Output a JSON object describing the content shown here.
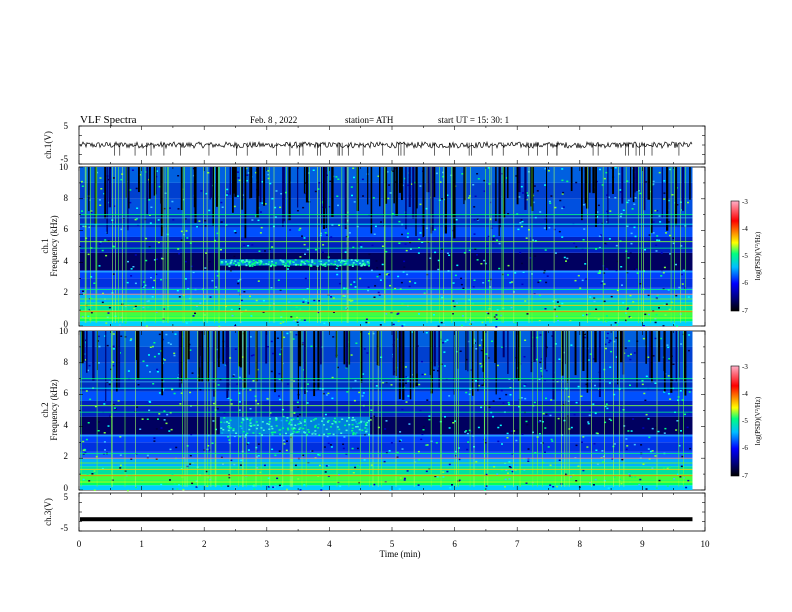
{
  "header": {
    "title": "VLF  Spectra",
    "date": "Feb. 8  , 2022",
    "station": "station= ATH",
    "start": "start  UT  =    15: 30: 1"
  },
  "chart_data": {
    "type": "heatmap",
    "xlabel": "Time  (min)",
    "xlim": [
      0,
      10
    ],
    "xticks": [
      "0",
      "1",
      "2",
      "3",
      "4",
      "5",
      "6",
      "7",
      "8",
      "9",
      "10"
    ],
    "data_end_min": 9.8,
    "panels": [
      {
        "id": "ch1-voltage",
        "type": "line",
        "ylabel": "ch.1(V)",
        "ylim": [
          -5,
          5
        ],
        "yticks": [
          "5",
          "-5"
        ],
        "baseline": 0.0,
        "color": "#000000"
      },
      {
        "id": "ch1-spectrogram",
        "type": "heatmap",
        "ylabel_top": "ch.1",
        "ylabel": "Frequency  (kHz)",
        "ylim": [
          0,
          10
        ],
        "yticks": [
          "0",
          "2",
          "4",
          "6",
          "8",
          "10"
        ],
        "enhancement": {
          "t_start": 2.25,
          "t_end": 4.65,
          "f_low": 3.8,
          "f_high": 4.2
        },
        "colorbar": {
          "label": "log(PSD)(V²/Hz)",
          "ticks": [
            "-3",
            "-4",
            "-5",
            "-6",
            "-7"
          ],
          "range": [
            -7,
            -3
          ],
          "colors": [
            "#000000",
            "#000080",
            "#0000ff",
            "#00bfff",
            "#00ff80",
            "#ffff00",
            "#ff8000",
            "#ff0000",
            "#ffb0c8"
          ]
        }
      },
      {
        "id": "ch2-spectrogram",
        "type": "heatmap",
        "ylabel_top": "ch.2",
        "ylabel": "Frequency  (kHz)",
        "ylim": [
          0,
          10
        ],
        "yticks": [
          "0",
          "2",
          "4",
          "6",
          "8",
          "10"
        ],
        "enhancement": {
          "t_start": 2.25,
          "t_end": 4.65,
          "f_low": 3.5,
          "f_high": 4.6
        },
        "colorbar": {
          "label": "log(PSD)(V²/Hz)",
          "ticks": [
            "-3",
            "-4",
            "-5",
            "-6",
            "-7"
          ],
          "range": [
            -7,
            -3
          ],
          "colors": [
            "#000000",
            "#000080",
            "#0000ff",
            "#00bfff",
            "#00ff80",
            "#ffff00",
            "#ff8000",
            "#ff0000",
            "#ffb0c8"
          ]
        }
      },
      {
        "id": "ch3-voltage",
        "type": "line",
        "ylabel": "ch.3(V)",
        "ylim": [
          -5,
          5
        ],
        "yticks": [
          "5",
          "-5"
        ],
        "baseline": -1.9,
        "color": "#000000"
      }
    ]
  }
}
